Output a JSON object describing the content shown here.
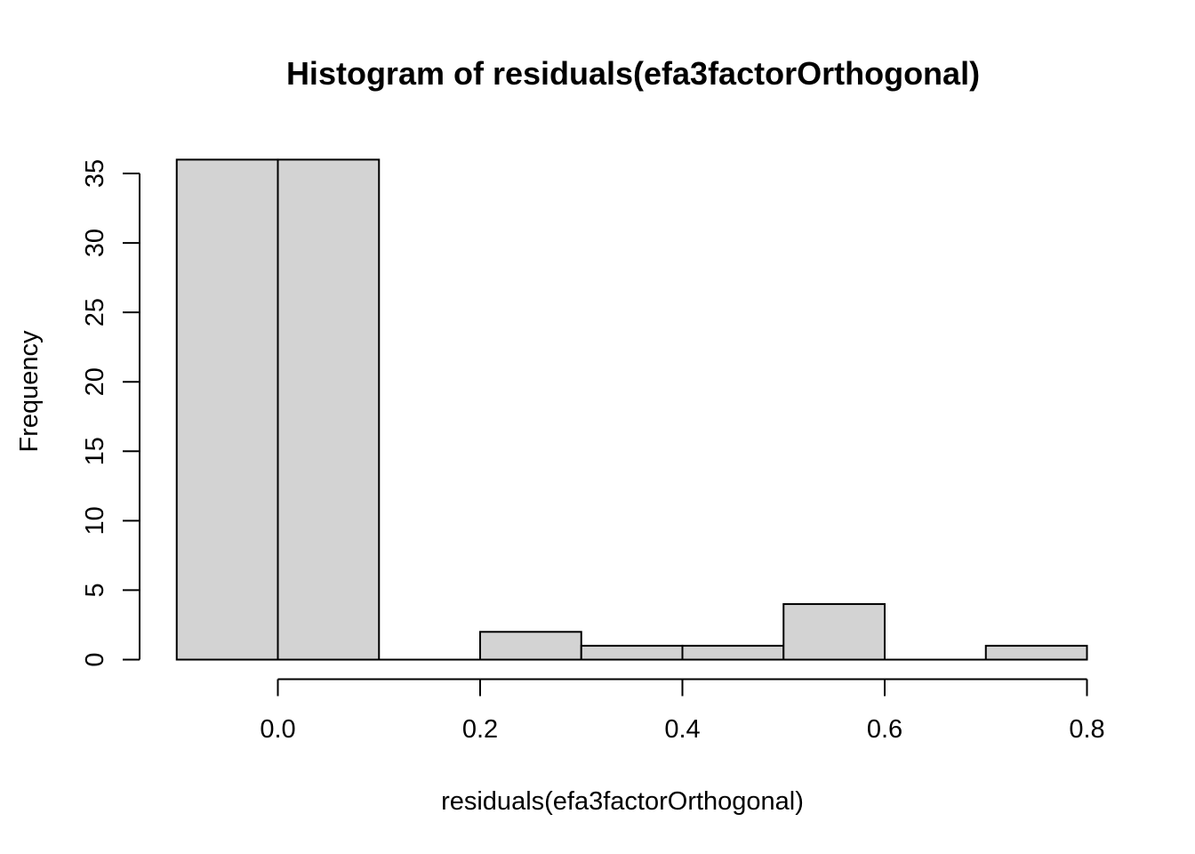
{
  "chart_data": {
    "type": "bar",
    "variant": "histogram",
    "title": "Histogram of residuals(efa3factorOrthogonal)",
    "xlabel": "residuals(efa3factorOrthogonal)",
    "ylabel": "Frequency",
    "breaks": [
      -0.1,
      0.0,
      0.1,
      0.2,
      0.3,
      0.4,
      0.5,
      0.6,
      0.7,
      0.8
    ],
    "counts": [
      36,
      36,
      0,
      2,
      1,
      1,
      4,
      0,
      1
    ],
    "x_ticks": [
      {
        "value": 0.0,
        "label": "0.0"
      },
      {
        "value": 0.2,
        "label": "0.2"
      },
      {
        "value": 0.4,
        "label": "0.4"
      },
      {
        "value": 0.6,
        "label": "0.6"
      },
      {
        "value": 0.8,
        "label": "0.8"
      }
    ],
    "y_ticks": [
      {
        "value": 0,
        "label": "0"
      },
      {
        "value": 5,
        "label": "5"
      },
      {
        "value": 10,
        "label": "10"
      },
      {
        "value": 15,
        "label": "15"
      },
      {
        "value": 20,
        "label": "20"
      },
      {
        "value": 25,
        "label": "25"
      },
      {
        "value": 30,
        "label": "30"
      },
      {
        "value": 35,
        "label": "35"
      }
    ],
    "xlim": [
      -0.1,
      0.8
    ],
    "ylim": [
      0,
      36
    ],
    "grid": false,
    "legend": null,
    "colors": {
      "bar_fill": "#D3D3D3",
      "bar_border": "#000000",
      "axis": "#000000",
      "text": "#000000",
      "background": "#FFFFFF"
    }
  }
}
